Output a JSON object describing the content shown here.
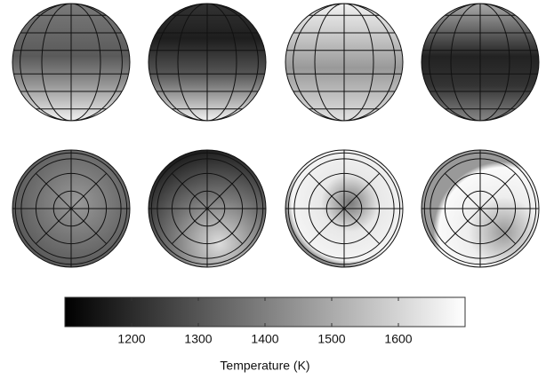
{
  "chart_data": {
    "type": "heatmap",
    "colorbar_label": "Temperature (K)",
    "clim": [
      1100,
      1700
    ],
    "cticks": [
      1200,
      1300,
      1400,
      1500,
      1600
    ]
  }
}
